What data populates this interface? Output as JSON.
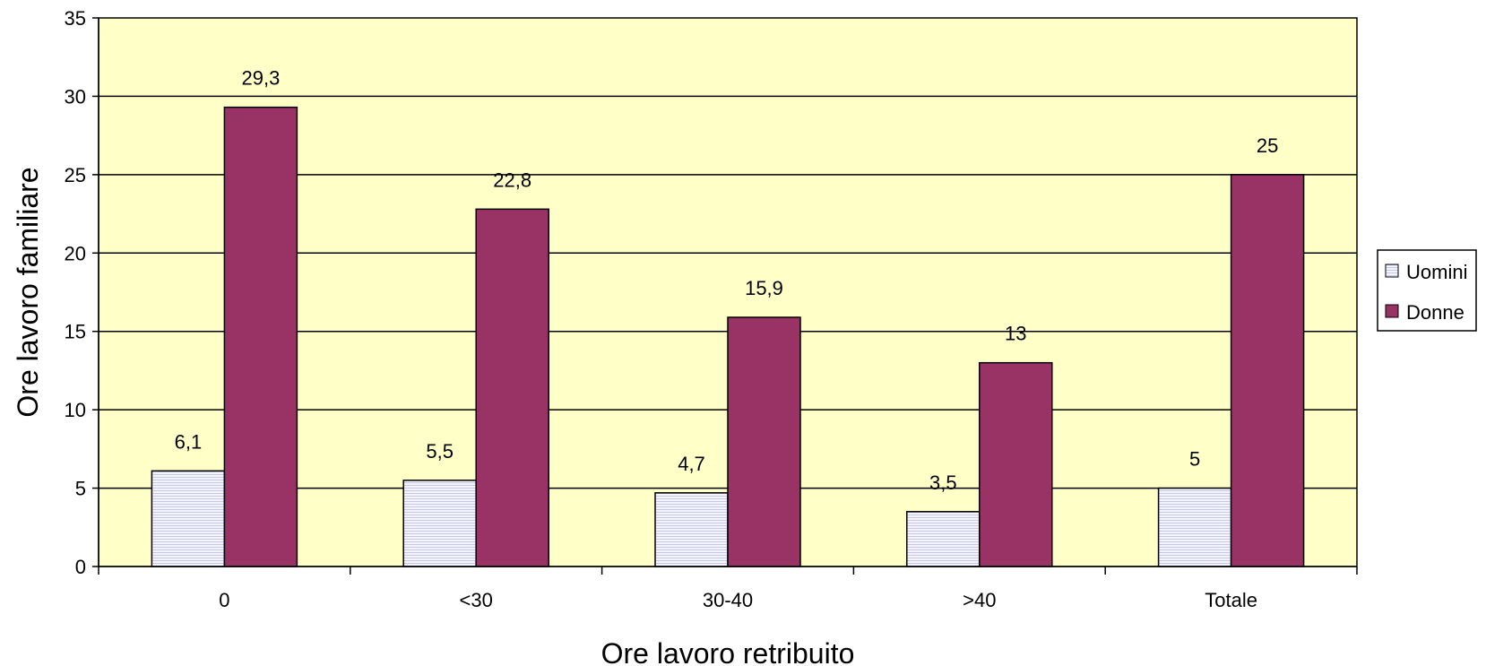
{
  "chart_data": {
    "type": "bar",
    "categories": [
      "0",
      "<30",
      "30-40",
      ">40",
      "Totale"
    ],
    "series": [
      {
        "name": "Uomini",
        "values": [
          6.1,
          5.5,
          4.7,
          3.5,
          5
        ],
        "labels": [
          "6,1",
          "5,5",
          "4,7",
          "3,5",
          "5"
        ]
      },
      {
        "name": "Donne",
        "values": [
          29.3,
          22.8,
          15.9,
          13,
          25
        ],
        "labels": [
          "29,3",
          "22,8",
          "15,9",
          "13",
          "25"
        ]
      }
    ],
    "title": "",
    "xlabel": "Ore lavoro retribuito",
    "ylabel": "Ore lavoro familiare",
    "ylim": [
      0,
      35
    ],
    "yticks": [
      0,
      5,
      10,
      15,
      20,
      25,
      30,
      35
    ],
    "grid": true,
    "legend_position": "right"
  },
  "colors": {
    "plot_background": "#FFFFC8",
    "uomini": "#F0F0FF",
    "donne": "#993366",
    "gridline": "#000000"
  }
}
